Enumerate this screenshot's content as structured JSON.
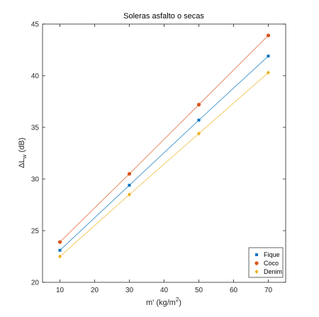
{
  "chart_data": {
    "type": "scatter",
    "title": "Soleras asfalto o secas",
    "xlabel": {
      "main": "m' (kg/m",
      "sup": "2",
      "tail": ")"
    },
    "ylabel": {
      "main": "ΔL",
      "sub": "w",
      "tail": " (dB)"
    },
    "xlim": [
      5,
      75
    ],
    "ylim": [
      20,
      45
    ],
    "xticks": [
      10,
      20,
      30,
      40,
      50,
      60,
      70
    ],
    "yticks": [
      20,
      25,
      30,
      35,
      40,
      45
    ],
    "grid": false,
    "legend_position": "bottom-right",
    "x": [
      10,
      30,
      50,
      70
    ],
    "series": [
      {
        "name": "Fique",
        "values": [
          23.1,
          29.4,
          35.7,
          41.9
        ],
        "color": "#0072BD",
        "marker": "square"
      },
      {
        "name": "Coco",
        "values": [
          23.9,
          30.5,
          37.2,
          43.9
        ],
        "color": "#D95319",
        "marker": "circle"
      },
      {
        "name": "Denim",
        "values": [
          22.5,
          28.5,
          34.4,
          40.3
        ],
        "color": "#EDB120",
        "marker": "diamond"
      }
    ]
  }
}
